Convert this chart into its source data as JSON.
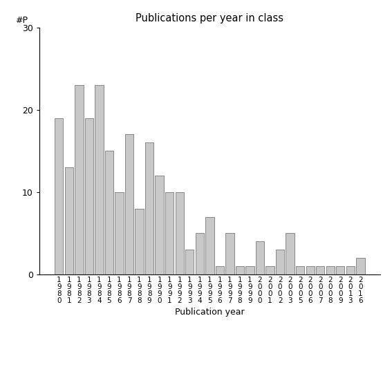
{
  "title": "Publications per year in class",
  "xlabel": "Publication year",
  "ylabel": "#P",
  "bar_color": "#c8c8c8",
  "bar_edgecolor": "#888888",
  "ylim": [
    0,
    30
  ],
  "yticks": [
    0,
    10,
    20,
    30
  ],
  "categories": [
    "1\n9\n8\n0",
    "1\n9\n8\n1",
    "1\n9\n8\n2",
    "1\n9\n8\n3",
    "1\n9\n8\n4",
    "1\n9\n8\n5",
    "1\n9\n8\n6",
    "1\n9\n8\n7",
    "1\n9\n8\n8",
    "1\n9\n8\n9",
    "1\n9\n9\n0",
    "1\n9\n9\n1",
    "1\n9\n9\n2",
    "1\n9\n9\n3",
    "1\n9\n9\n4",
    "1\n9\n9\n5",
    "1\n9\n9\n6",
    "1\n9\n9\n7",
    "1\n9\n9\n8",
    "1\n9\n9\n9",
    "2\n0\n0\n0",
    "2\n0\n0\n1",
    "2\n0\n0\n2",
    "2\n0\n0\n3",
    "2\n0\n0\n5",
    "2\n0\n0\n6",
    "2\n0\n0\n7",
    "2\n0\n0\n8",
    "2\n0\n0\n9",
    "2\n0\n1\n3",
    "2\n0\n1\n6"
  ],
  "values": [
    19,
    13,
    23,
    19,
    23,
    15,
    10,
    17,
    8,
    16,
    12,
    10,
    10,
    3,
    5,
    7,
    1,
    5,
    1,
    1,
    4,
    1,
    3,
    5,
    1,
    1,
    1,
    1,
    1,
    1,
    2
  ]
}
